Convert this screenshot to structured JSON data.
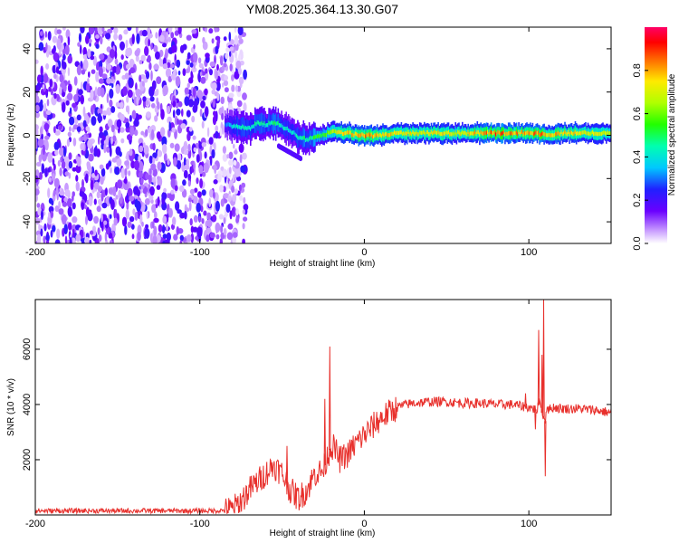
{
  "title": "YM08.2025.364.13.30.G07",
  "chart_data": [
    {
      "type": "heatmap",
      "name": "spectrogram",
      "xlabel": "Height of straight line (km)",
      "ylabel": "Frequency (Hz)",
      "xlim": [
        -200,
        150
      ],
      "ylim": [
        -50,
        50
      ],
      "x_ticks": [
        -200,
        -100,
        0,
        100
      ],
      "y_ticks": [
        -40,
        -20,
        0,
        20,
        40
      ],
      "noise_region_x": [
        -200,
        -80
      ],
      "ridge": {
        "x": [
          -85,
          -80,
          -75,
          -70,
          -65,
          -60,
          -55,
          -50,
          -45,
          -40,
          -35,
          -30,
          -25,
          -20,
          -15,
          -10,
          -5,
          0,
          10,
          20,
          40,
          60,
          80,
          90,
          100,
          105,
          110,
          120,
          130,
          150
        ],
        "freq": [
          5,
          4,
          4,
          3,
          6,
          5,
          6,
          4,
          2,
          -1,
          -2,
          -1,
          0,
          2,
          1,
          1,
          0,
          0,
          0,
          1,
          1,
          1,
          1,
          1,
          1,
          1,
          0,
          1,
          1,
          1
        ],
        "amplitude": [
          0.3,
          0.4,
          0.45,
          0.45,
          0.5,
          0.45,
          0.55,
          0.45,
          0.4,
          0.45,
          0.5,
          0.55,
          0.6,
          0.7,
          0.75,
          0.8,
          0.8,
          0.85,
          0.8,
          0.75,
          0.75,
          0.75,
          0.9,
          0.85,
          0.85,
          0.9,
          0.8,
          0.8,
          0.75,
          0.7
        ]
      },
      "colorbar": {
        "label": "Normalized spectral amplitude",
        "ticks": [
          "0.0",
          "0.2",
          "0.4",
          "0.6",
          "0.8"
        ],
        "range": [
          0,
          1
        ]
      }
    },
    {
      "type": "line",
      "name": "snr",
      "xlabel": "Height of straight line (km)",
      "ylabel": "SNR (10 * v/v)",
      "xlim": [
        -200,
        150
      ],
      "ylim": [
        0,
        7800
      ],
      "x_ticks": [
        -200,
        -100,
        0,
        100
      ],
      "y_ticks": [
        2000,
        4000,
        6000
      ],
      "color": "#e8302c",
      "series": [
        {
          "name": "SNR",
          "x": [
            -200,
            -90,
            -80,
            -75,
            -70,
            -65,
            -60,
            -55,
            -50,
            -45,
            -40,
            -35,
            -30,
            -25,
            -22,
            -20,
            -18,
            -15,
            -10,
            -5,
            0,
            5,
            10,
            15,
            20,
            25,
            30,
            40,
            50,
            60,
            70,
            80,
            90,
            95,
            100,
            105,
            107,
            108,
            110,
            111,
            112,
            115,
            120,
            130,
            140,
            150
          ],
          "y": [
            150,
            150,
            200,
            500,
            900,
            1200,
            1500,
            1800,
            1500,
            900,
            600,
            900,
            1500,
            1600,
            2200,
            2500,
            2400,
            2000,
            2200,
            2600,
            2900,
            3200,
            3500,
            3700,
            3900,
            4000,
            4050,
            4100,
            4100,
            4050,
            4050,
            4000,
            4000,
            3950,
            3900,
            3800,
            4200,
            3700,
            3400,
            4000,
            3800,
            3900,
            3850,
            3850,
            3800,
            3700
          ]
        }
      ],
      "spikes": [
        {
          "x": -21,
          "y": 6100
        },
        {
          "x": -24,
          "y": 4200
        },
        {
          "x": -47,
          "y": 2500
        },
        {
          "x": 98,
          "y": 4400
        },
        {
          "x": 106,
          "y": 6700
        },
        {
          "x": 109,
          "y": 7800
        },
        {
          "x": 110,
          "y": 1400
        },
        {
          "x": 108,
          "y": 5800
        },
        {
          "x": 104,
          "y": 3100
        }
      ]
    }
  ]
}
